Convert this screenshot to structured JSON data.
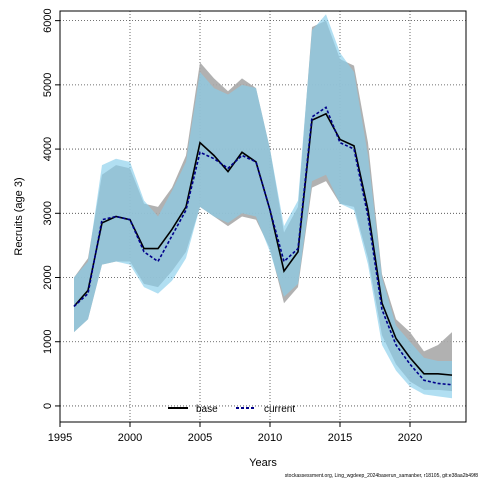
{
  "chart_data": {
    "type": "line",
    "xlabel": "Years",
    "ylabel": "Recruits (age 3)",
    "xlim": [
      1995,
      2024
    ],
    "ylim": [
      -250,
      6150
    ],
    "x_ticks": [
      1995,
      2000,
      2005,
      2010,
      2015,
      2020
    ],
    "y_ticks": [
      0,
      1000,
      2000,
      3000,
      4000,
      5000,
      6000
    ],
    "grid": true,
    "legend_placement": "bottom-center",
    "x": [
      1996,
      1997,
      1998,
      1999,
      2000,
      2001,
      2002,
      2003,
      2004,
      2005,
      2006,
      2007,
      2008,
      2009,
      2010,
      2011,
      2012,
      2013,
      2014,
      2015,
      2016,
      2017,
      2018,
      2019,
      2020,
      2021,
      2022,
      2023
    ],
    "series": [
      {
        "name": "base",
        "color": "#000000",
        "line_style": "solid",
        "band_color": "#a9a9a9",
        "values": [
          1550,
          1800,
          2850,
          2950,
          2900,
          2450,
          2450,
          2750,
          3100,
          4100,
          3900,
          3650,
          3950,
          3800,
          3050,
          2100,
          2400,
          4450,
          4550,
          4150,
          4050,
          3050,
          1600,
          1050,
          750,
          500,
          500,
          480
        ],
        "lower": [
          1150,
          1350,
          2200,
          2250,
          2250,
          1900,
          1850,
          2100,
          2400,
          3100,
          2950,
          2800,
          2950,
          2900,
          2450,
          1600,
          1850,
          3400,
          3500,
          3150,
          3100,
          2300,
          1100,
          650,
          380,
          250,
          250,
          230
        ],
        "upper": [
          2000,
          2300,
          3600,
          3750,
          3700,
          3150,
          3100,
          3400,
          3900,
          5350,
          5100,
          4900,
          5100,
          4950,
          4000,
          2700,
          3100,
          5900,
          6000,
          5400,
          5300,
          4100,
          2050,
          1350,
          1150,
          850,
          950,
          1150
        ]
      },
      {
        "name": "current",
        "color": "#00008b",
        "line_style": "dashed",
        "band_color": "#87ceeb",
        "values": [
          1550,
          1750,
          2900,
          2950,
          2900,
          2400,
          2250,
          2650,
          3050,
          3950,
          3850,
          3700,
          3900,
          3800,
          3050,
          2250,
          2450,
          4500,
          4650,
          4100,
          4000,
          2950,
          1500,
          950,
          650,
          400,
          350,
          330
        ],
        "lower": [
          1150,
          1350,
          2200,
          2250,
          2200,
          1850,
          1750,
          1950,
          2300,
          3100,
          2950,
          2850,
          3000,
          2950,
          2400,
          1700,
          1900,
          3500,
          3600,
          3150,
          3050,
          2200,
          950,
          550,
          300,
          180,
          150,
          120
        ],
        "upper": [
          2000,
          2250,
          3750,
          3850,
          3800,
          3200,
          2950,
          3350,
          3800,
          5200,
          4950,
          4850,
          5000,
          4950,
          4000,
          2800,
          3200,
          5850,
          6100,
          5500,
          5200,
          3900,
          2000,
          1250,
          1000,
          750,
          700,
          700
        ]
      }
    ],
    "legend": [
      {
        "label": "base",
        "color": "#000000",
        "line_style": "solid"
      },
      {
        "label": "current",
        "color": "#00008b",
        "line_style": "dashed"
      }
    ],
    "footer": "stockassessment.org, Ling_wgdeep_2024baserun_samanber, r18105, git:e38aa2b49f8"
  }
}
